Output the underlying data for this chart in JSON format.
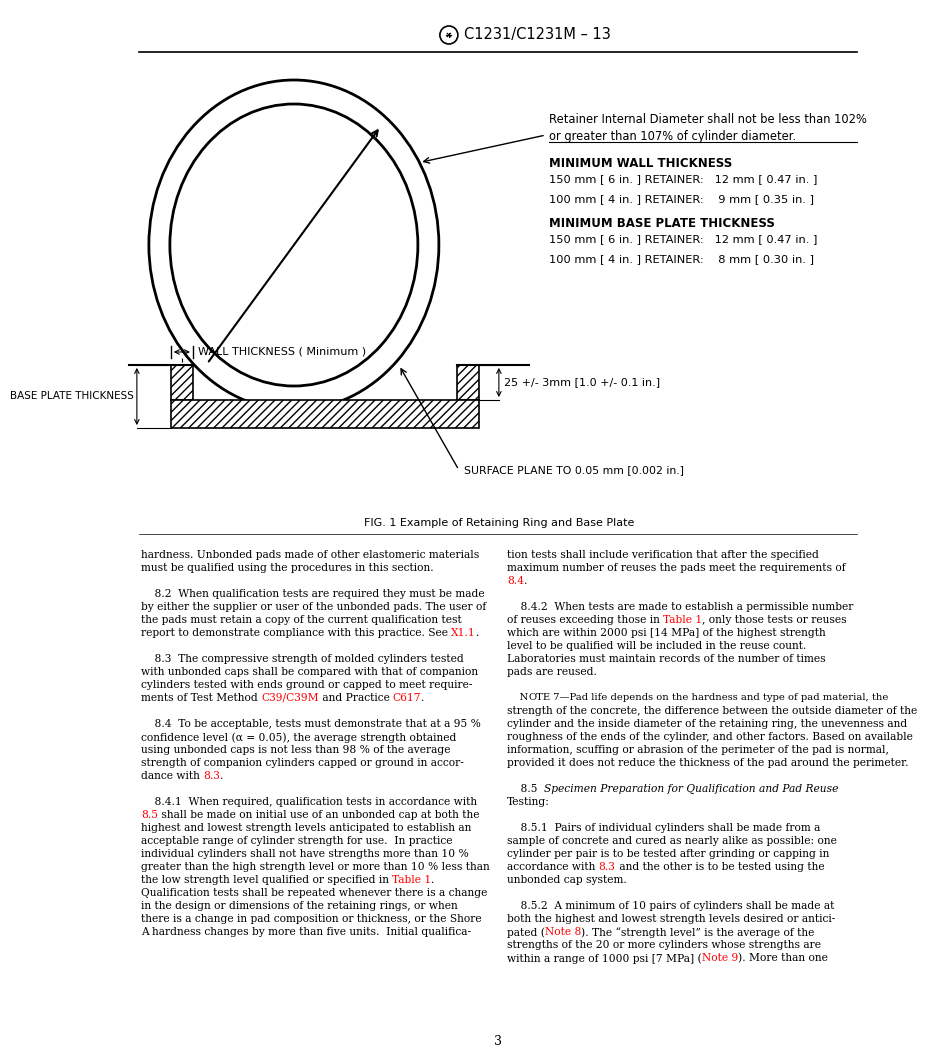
{
  "title": "C1231/C1231M – 13",
  "fig_caption": "FIG. 1 Example of Retaining Ring and Base Plate",
  "retainer_note": "Retainer Internal Diameter shall not be less than 102%\nor greater than 107% of cylinder diameter.",
  "min_wall_title": "MINIMUM WALL THICKNESS",
  "wall_150": "150 mm [ 6 in. ] RETAINER:   12 mm [ 0.47 in. ]",
  "wall_100": "100 mm [ 4 in. ] RETAINER:    9 mm [ 0.35 in. ]",
  "min_base_title": "MINIMUM BASE PLATE THICKNESS",
  "base_150": "150 mm [ 6 in. ] RETAINER:   12 mm [ 0.47 in. ]",
  "base_100": "100 mm [ 4 in. ] RETAINER:    8 mm [ 0.30 in. ]",
  "wall_label": "WALL THICKNESS ( Minimum )",
  "base_label": "BASE PLATE THICKNESS",
  "dim_25": "25 +/- 3mm [1.0 +/- 0.1 in.]",
  "surface_label": "SURFACE PLANE TO 0.05 mm [0.002 in.]",
  "page_number": "3",
  "left_col_lines": [
    {
      "text": "hardness. Unbonded pads made of other elastomeric materials",
      "segments": [
        {
          "t": "hardness. Unbonded pads made of other elastomeric materials",
          "c": "black"
        }
      ]
    },
    {
      "text": "must be qualified using the procedures in this section.",
      "segments": [
        {
          "t": "must be qualified using the procedures in this section.",
          "c": "black"
        }
      ]
    },
    {
      "text": "",
      "segments": [
        {
          "t": "",
          "c": "black"
        }
      ]
    },
    {
      "text": "    8.2  When qualification tests are required they must be made",
      "segments": [
        {
          "t": "    8.2  When qualification tests are required they must be made",
          "c": "black"
        }
      ]
    },
    {
      "text": "by either the supplier or user of the unbonded pads. The user of",
      "segments": [
        {
          "t": "by either the supplier or user of the unbonded pads. The user of",
          "c": "black"
        }
      ]
    },
    {
      "text": "the pads must retain a copy of the current qualification test",
      "segments": [
        {
          "t": "the pads must retain a copy of the current qualification test",
          "c": "black"
        }
      ]
    },
    {
      "text": "report to demonstrate compliance with this practice. See ",
      "segments": [
        {
          "t": "report to demonstrate compliance with this practice. See ",
          "c": "black"
        },
        {
          "t": "X1.1",
          "c": "red"
        },
        {
          "t": ".",
          "c": "black"
        }
      ]
    },
    {
      "text": "",
      "segments": [
        {
          "t": "",
          "c": "black"
        }
      ]
    },
    {
      "text": "    8.3  The compressive strength of molded cylinders tested",
      "segments": [
        {
          "t": "    8.3  The compressive strength of molded cylinders tested",
          "c": "black"
        }
      ]
    },
    {
      "text": "with unbonded caps shall be compared with that of companion",
      "segments": [
        {
          "t": "with unbonded caps shall be compared with that of companion",
          "c": "black"
        }
      ]
    },
    {
      "text": "cylinders tested with ends ground or capped to meet require-",
      "segments": [
        {
          "t": "cylinders tested with ends ground or capped to meet require-",
          "c": "black"
        }
      ]
    },
    {
      "text": "ments of Test Method ",
      "segments": [
        {
          "t": "ments of Test Method ",
          "c": "black"
        },
        {
          "t": "C39/C39M",
          "c": "red"
        },
        {
          "t": " and Practice ",
          "c": "black"
        },
        {
          "t": "C617",
          "c": "red"
        },
        {
          "t": ".",
          "c": "black"
        }
      ]
    },
    {
      "text": "",
      "segments": [
        {
          "t": "",
          "c": "black"
        }
      ]
    },
    {
      "text": "    8.4  To be acceptable, tests must demonstrate that at a 95 %",
      "segments": [
        {
          "t": "    8.4  To be acceptable, tests must demonstrate that at a 95 %",
          "c": "black"
        }
      ]
    },
    {
      "text": "confidence level (α = 0.05), the average strength obtained",
      "segments": [
        {
          "t": "confidence level (α = 0.05), the average strength obtained",
          "c": "black"
        }
      ]
    },
    {
      "text": "using unbonded caps is not less than 98 % of the average",
      "segments": [
        {
          "t": "using unbonded caps is not less than 98 % of the average",
          "c": "black"
        }
      ]
    },
    {
      "text": "strength of companion cylinders capped or ground in accor-",
      "segments": [
        {
          "t": "strength of companion cylinders capped or ground in accor-",
          "c": "black"
        }
      ]
    },
    {
      "text": "dance with ",
      "segments": [
        {
          "t": "dance with ",
          "c": "black"
        },
        {
          "t": "8.3",
          "c": "red"
        },
        {
          "t": ".",
          "c": "black"
        }
      ]
    },
    {
      "text": "",
      "segments": [
        {
          "t": "",
          "c": "black"
        }
      ]
    },
    {
      "text": "    8.4.1  When required, qualification tests in accordance with",
      "segments": [
        {
          "t": "    8.4.1  When required, qualification tests in accordance with",
          "c": "black"
        }
      ]
    },
    {
      "text": "8.5 shall be made",
      "segments": [
        {
          "t": "",
          "c": "black"
        },
        {
          "t": "8.5",
          "c": "red"
        },
        {
          "t": " shall be made on initial use of an unbonded cap at both the",
          "c": "black"
        }
      ]
    },
    {
      "text": "highest and lowest strength levels anticipated to establish an",
      "segments": [
        {
          "t": "highest and lowest strength levels anticipated to establish an",
          "c": "black"
        }
      ]
    },
    {
      "text": "acceptable range of cylinder strength for use.  In practice",
      "segments": [
        {
          "t": "acceptable range of cylinder strength for use.  In practice",
          "c": "black"
        }
      ]
    },
    {
      "text": "individual cylinders shall not have strengths more than 10 %",
      "segments": [
        {
          "t": "individual cylinders shall not have strengths more than 10 %",
          "c": "black"
        }
      ]
    },
    {
      "text": "greater than the high strength level or more than 10 % less than",
      "segments": [
        {
          "t": "greater than the high strength level or more than 10 % less than",
          "c": "black"
        }
      ]
    },
    {
      "text": "the low strength level qualified or specified in ",
      "segments": [
        {
          "t": "the low strength level qualified or specified in ",
          "c": "black"
        },
        {
          "t": "Table 1",
          "c": "red"
        },
        {
          "t": ".",
          "c": "black"
        }
      ]
    },
    {
      "text": "Qualification tests shall be repeated whenever there is a change",
      "segments": [
        {
          "t": "Qualification tests shall be repeated whenever there is a change",
          "c": "black"
        }
      ]
    },
    {
      "text": "in the design or dimensions of the retaining rings, or when",
      "segments": [
        {
          "t": "in the design or dimensions of the retaining rings, or when",
          "c": "black"
        }
      ]
    },
    {
      "text": "there is a change in pad composition or thickness, or the Shore",
      "segments": [
        {
          "t": "there is a change in pad composition or thickness, or the Shore",
          "c": "black"
        }
      ]
    },
    {
      "text": "A hardness changes by more than five units.  Initial qualifica-",
      "segments": [
        {
          "t": "A hardness changes by more than five units.  Initial qualifica-",
          "c": "black"
        }
      ]
    }
  ],
  "right_col_lines": [
    {
      "text": "tion tests shall include verification that after the specified",
      "segments": [
        {
          "t": "tion tests shall include verification that after the specified",
          "c": "black"
        }
      ]
    },
    {
      "text": "maximum number of reuses the pads meet the requirements of",
      "segments": [
        {
          "t": "maximum number of reuses the pads meet the requirements of",
          "c": "black"
        }
      ]
    },
    {
      "text": "8.4.",
      "segments": [
        {
          "t": "",
          "c": "black"
        },
        {
          "t": "8.4",
          "c": "red"
        },
        {
          "t": ".",
          "c": "black"
        }
      ]
    },
    {
      "text": "",
      "segments": [
        {
          "t": "",
          "c": "black"
        }
      ]
    },
    {
      "text": "    8.4.2  When tests are made to establish a permissible number",
      "segments": [
        {
          "t": "    8.4.2  When tests are made to establish a permissible number",
          "c": "black"
        }
      ]
    },
    {
      "text": "of reuses exceeding those in ",
      "segments": [
        {
          "t": "of reuses exceeding those in ",
          "c": "black"
        },
        {
          "t": "Table 1",
          "c": "red"
        },
        {
          "t": ", only those tests or reuses",
          "c": "black"
        }
      ]
    },
    {
      "text": "which are within 2000 psi [14 MPa] of the highest strength",
      "segments": [
        {
          "t": "which are within 2000 psi [14 MPa] of the highest strength",
          "c": "black"
        }
      ]
    },
    {
      "text": "level to be qualified will be included in the reuse count.",
      "segments": [
        {
          "t": "level to be qualified will be included in the reuse count.",
          "c": "black"
        }
      ]
    },
    {
      "text": "Laboratories must maintain records of the number of times",
      "segments": [
        {
          "t": "Laboratories must maintain records of the number of times",
          "c": "black"
        }
      ]
    },
    {
      "text": "pads are reused.",
      "segments": [
        {
          "t": "pads are reused.",
          "c": "black"
        }
      ]
    },
    {
      "text": "",
      "segments": [
        {
          "t": "",
          "c": "black"
        }
      ]
    },
    {
      "text": "    NOTE 7—Pad life depends on the hardness and type of pad material, the",
      "segments": [
        {
          "t": "    N",
          "c": "black"
        },
        {
          "t": "OTE",
          "c": "black"
        },
        {
          "t": " 7—Pad life depends on the hardness and type of pad material, the",
          "c": "black"
        }
      ]
    },
    {
      "text": "strength of the concrete, the difference between the outside diameter of the",
      "segments": [
        {
          "t": "strength of the concrete, the difference between the outside diameter of the",
          "c": "black"
        }
      ]
    },
    {
      "text": "cylinder and the inside diameter of the retaining ring, the unevenness and",
      "segments": [
        {
          "t": "cylinder and the inside diameter of the retaining ring, the unevenness and",
          "c": "black"
        }
      ]
    },
    {
      "text": "roughness of the ends of the cylinder, and other factors. Based on available",
      "segments": [
        {
          "t": "roughness of the ends of the cylinder, and other factors. Based on available",
          "c": "black"
        }
      ]
    },
    {
      "text": "information, scuffing or abrasion of the perimeter of the pad is normal,",
      "segments": [
        {
          "t": "information, scuffing or abrasion of the perimeter of the pad is normal,",
          "c": "black"
        }
      ]
    },
    {
      "text": "provided it does not reduce the thickness of the pad around the perimeter.",
      "segments": [
        {
          "t": "provided it does not reduce the thickness of the pad around the perimeter.",
          "c": "black"
        }
      ]
    },
    {
      "text": "",
      "segments": [
        {
          "t": "",
          "c": "black"
        }
      ]
    },
    {
      "text": "    8.5  Specimen Preparation for Qualification and Pad Reuse",
      "segments": [
        {
          "t": "    8.5  ",
          "c": "black"
        },
        {
          "t": "Specimen Preparation for Qualification and Pad Reuse",
          "c": "black",
          "style": "italic"
        }
      ]
    },
    {
      "text": "Testing:",
      "segments": [
        {
          "t": "Testing:",
          "c": "black",
          "style": "italic"
        }
      ]
    },
    {
      "text": "",
      "segments": [
        {
          "t": "",
          "c": "black"
        }
      ]
    },
    {
      "text": "    8.5.1  Pairs of individual cylinders shall be made from a",
      "segments": [
        {
          "t": "    8.5.1  Pairs of individual cylinders shall be made from a",
          "c": "black"
        }
      ]
    },
    {
      "text": "sample of concrete and cured as nearly alike as possible: one",
      "segments": [
        {
          "t": "sample of concrete and cured as nearly alike as possible: one",
          "c": "black"
        }
      ]
    },
    {
      "text": "cylinder per pair is to be tested after grinding or capping in",
      "segments": [
        {
          "t": "cylinder per pair is to be tested after grinding or capping in",
          "c": "black"
        }
      ]
    },
    {
      "text": "accordance with ",
      "segments": [
        {
          "t": "accordance with ",
          "c": "black"
        },
        {
          "t": "8.3",
          "c": "red"
        },
        {
          "t": " and the other is to be tested using the",
          "c": "black"
        }
      ]
    },
    {
      "text": "unbonded cap system.",
      "segments": [
        {
          "t": "unbonded cap system.",
          "c": "black"
        }
      ]
    },
    {
      "text": "",
      "segments": [
        {
          "t": "",
          "c": "black"
        }
      ]
    },
    {
      "text": "    8.5.2  A minimum of 10 pairs of cylinders shall be made at",
      "segments": [
        {
          "t": "    8.5.2  A minimum of 10 pairs of cylinders shall be made at",
          "c": "black"
        }
      ]
    },
    {
      "text": "both the highest and lowest strength levels desired or antici-",
      "segments": [
        {
          "t": "both the highest and lowest strength levels desired or antici-",
          "c": "black"
        }
      ]
    },
    {
      "text": "pated (",
      "segments": [
        {
          "t": "pated (",
          "c": "black"
        },
        {
          "t": "Note 8",
          "c": "red"
        },
        {
          "t": "). The “strength level” is the average of the",
          "c": "black"
        }
      ]
    },
    {
      "text": "strengths of the 20 or more cylinders whose strengths are",
      "segments": [
        {
          "t": "strengths of the 20 or more cylinders whose strengths are",
          "c": "black"
        }
      ]
    },
    {
      "text": "within a range of 1000 psi [7 MPa] (",
      "segments": [
        {
          "t": "within a range of 1000 psi [7 MPa] (",
          "c": "black"
        },
        {
          "t": "Note 9",
          "c": "red"
        },
        {
          "t": "). More than one",
          "c": "black"
        }
      ]
    }
  ]
}
